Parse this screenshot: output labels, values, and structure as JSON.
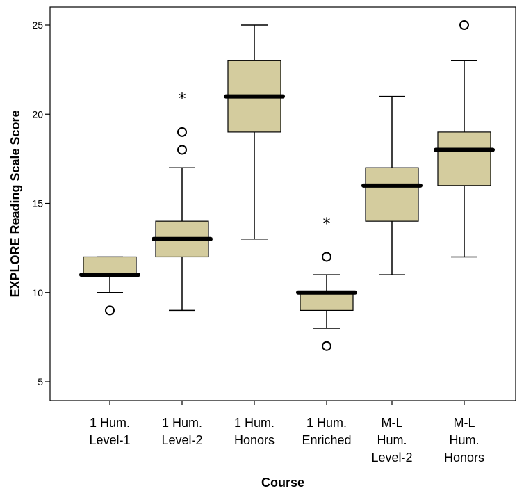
{
  "chart_data": {
    "type": "boxplot",
    "xlabel": "Course",
    "ylabel": "EXPLORE Reading Scale Score",
    "ylim": [
      3.5,
      26.2
    ],
    "yticks": [
      5,
      10,
      15,
      20,
      25
    ],
    "grid": false,
    "legend": "none",
    "box_color": "#d4cc9e",
    "categories": [
      {
        "lines": [
          "1 Hum.",
          "Level-1"
        ],
        "whisker_low": 10,
        "q1": 11,
        "median": 11,
        "q3": 12,
        "whisker_high": 12,
        "outliers": [
          9
        ],
        "extremes": []
      },
      {
        "lines": [
          "1 Hum.",
          "Level-2"
        ],
        "whisker_low": 9,
        "q1": 12,
        "median": 13,
        "q3": 14,
        "whisker_high": 17,
        "outliers": [
          18,
          19
        ],
        "extremes": [
          21
        ]
      },
      {
        "lines": [
          "1 Hum.",
          "Honors"
        ],
        "whisker_low": 13,
        "q1": 19,
        "median": 21,
        "q3": 23,
        "whisker_high": 25,
        "outliers": [],
        "extremes": []
      },
      {
        "lines": [
          "1 Hum.",
          "Enriched"
        ],
        "whisker_low": 8,
        "q1": 9,
        "median": 10,
        "q3": 10,
        "whisker_high": 11,
        "outliers": [
          7,
          12
        ],
        "extremes": [
          14
        ]
      },
      {
        "lines": [
          "M-L",
          "Hum.",
          "Level-2"
        ],
        "whisker_low": 11,
        "q1": 14,
        "median": 16,
        "q3": 17,
        "whisker_high": 21,
        "outliers": [],
        "extremes": []
      },
      {
        "lines": [
          "M-L",
          "Hum.",
          "Honors"
        ],
        "whisker_low": 12,
        "q1": 16,
        "median": 18,
        "q3": 19,
        "whisker_high": 23,
        "outliers": [
          25
        ],
        "extremes": []
      }
    ]
  }
}
